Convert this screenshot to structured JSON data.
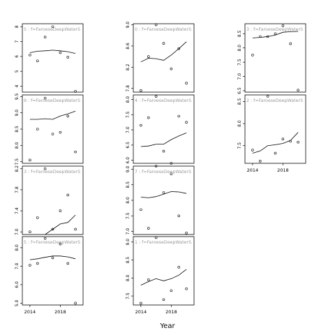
{
  "chart_data": {
    "type": "scatter",
    "xlabel": "Year",
    "x_ticks": [
      "2014",
      "2018"
    ],
    "xlim": [
      2013,
      2021
    ],
    "panels": [
      {
        "label": "5 : f=FaroeseDeepWaterS",
        "y_ticks": [
          "4",
          "5",
          "6",
          "7",
          "8"
        ],
        "ylim": [
          3.6,
          8.2
        ],
        "points": [
          [
            2014,
            6.1
          ],
          [
            2015,
            5.7
          ],
          [
            2016,
            7.3
          ],
          [
            2017,
            8.0
          ],
          [
            2018,
            6.25
          ],
          [
            2019,
            5.95
          ],
          [
            2020,
            3.65
          ]
        ],
        "trend": [
          [
            2014,
            6.25
          ],
          [
            2015,
            6.35
          ],
          [
            2016,
            6.38
          ],
          [
            2017,
            6.42
          ],
          [
            2018,
            6.38
          ],
          [
            2019,
            6.32
          ],
          [
            2020,
            6.2
          ]
        ]
      },
      {
        "label": "9 : f=FaroeseDeepWaterS",
        "y_ticks": [
          "7.5",
          "8.0",
          "8.5",
          "9.0",
          "9.5"
        ],
        "ylim": [
          7.45,
          9.55
        ],
        "points": [
          [
            2014,
            7.55
          ],
          [
            2015,
            8.5
          ],
          [
            2016,
            9.45
          ],
          [
            2017,
            8.35
          ],
          [
            2018,
            8.4
          ],
          [
            2019,
            8.9
          ],
          [
            2020,
            7.8
          ]
        ],
        "trend": [
          [
            2014,
            8.8
          ],
          [
            2015,
            8.8
          ],
          [
            2016,
            8.82
          ],
          [
            2017,
            8.8
          ],
          [
            2018,
            8.9
          ],
          [
            2019,
            8.97
          ],
          [
            2020,
            9.05
          ]
        ]
      },
      {
        "label": "3 : f=FaroeseDeepWaterS",
        "y_ticks": [
          "7.0",
          "7.4",
          "7.8",
          "8.2"
        ],
        "ylim": [
          6.95,
          8.25
        ],
        "points": [
          [
            2014,
            7.0
          ],
          [
            2015,
            7.27
          ],
          [
            2016,
            8.2
          ],
          [
            2017,
            7.05
          ],
          [
            2018,
            7.4
          ],
          [
            2019,
            7.7
          ],
          [
            2020,
            7.05
          ]
        ],
        "trend": [
          [
            2016,
            6.95
          ],
          [
            2017,
            7.05
          ],
          [
            2018,
            7.15
          ],
          [
            2019,
            7.18
          ],
          [
            2020,
            7.32
          ]
        ]
      },
      {
        "label": "5 : f=FaroeseDeepWaterS",
        "y_ticks": [
          "5.0",
          "6.0",
          "7.0",
          "8.0"
        ],
        "ylim": [
          4.9,
          8.6
        ],
        "points": [
          [
            2014,
            7.05
          ],
          [
            2015,
            7.15
          ],
          [
            2016,
            8.5
          ],
          [
            2017,
            7.45
          ],
          [
            2018,
            8.2
          ],
          [
            2019,
            7.15
          ],
          [
            2020,
            5.0
          ]
        ],
        "trend": [
          [
            2014,
            7.35
          ],
          [
            2015,
            7.4
          ],
          [
            2016,
            7.48
          ],
          [
            2017,
            7.55
          ],
          [
            2018,
            7.55
          ],
          [
            2019,
            7.5
          ],
          [
            2020,
            7.4
          ]
        ]
      },
      {
        "label": "0 : f=FaroeseDeepWaterS",
        "y_ticks": [
          "7.8",
          "8.2",
          "8.6",
          "9.0"
        ],
        "ylim": [
          7.73,
          9.02
        ],
        "points": [
          [
            2014,
            7.76
          ],
          [
            2015,
            8.4
          ],
          [
            2016,
            9.0
          ],
          [
            2017,
            8.65
          ],
          [
            2018,
            8.17
          ],
          [
            2019,
            8.55
          ],
          [
            2020,
            7.9
          ]
        ],
        "trend": [
          [
            2014,
            8.3
          ],
          [
            2015,
            8.37
          ],
          [
            2016,
            8.36
          ],
          [
            2017,
            8.33
          ],
          [
            2018,
            8.43
          ],
          [
            2019,
            8.55
          ],
          [
            2020,
            8.68
          ]
        ]
      },
      {
        "label": "4 : f=FaroeseDeepWaterS",
        "y_ticks": [
          "6.0",
          "6.5",
          "7.0",
          "7.5",
          "8.0"
        ],
        "ylim": [
          5.9,
          8.15
        ],
        "points": [
          [
            2014,
            7.15
          ],
          [
            2015,
            7.4
          ],
          [
            2016,
            8.1
          ],
          [
            2017,
            6.3
          ],
          [
            2018,
            5.9
          ],
          [
            2019,
            7.45
          ],
          [
            2020,
            7.25
          ]
        ],
        "trend": [
          [
            2014,
            6.45
          ],
          [
            2015,
            6.47
          ],
          [
            2016,
            6.53
          ],
          [
            2017,
            6.53
          ],
          [
            2018,
            6.68
          ],
          [
            2019,
            6.8
          ],
          [
            2020,
            6.9
          ]
        ]
      },
      {
        "label": "7 : f=FaroeseDeepWaterS",
        "y_ticks": [
          "7.0",
          "7.5",
          "8.0",
          "8.5",
          "9.0"
        ],
        "ylim": [
          6.9,
          9.1
        ],
        "points": [
          [
            2014,
            7.7
          ],
          [
            2015,
            7.1
          ],
          [
            2016,
            9.1
          ],
          [
            2017,
            8.25
          ],
          [
            2018,
            8.85
          ],
          [
            2019,
            7.5
          ],
          [
            2020,
            6.95
          ]
        ],
        "trend": [
          [
            2014,
            8.1
          ],
          [
            2015,
            8.08
          ],
          [
            2016,
            8.12
          ],
          [
            2017,
            8.2
          ],
          [
            2018,
            8.28
          ],
          [
            2019,
            8.27
          ],
          [
            2020,
            8.22
          ]
        ]
      },
      {
        "label": "1 : f=FaroeseDeepWaterS",
        "y_ticks": [
          "7.5",
          "8.0",
          "8.5",
          "9.0"
        ],
        "ylim": [
          7.25,
          9.15
        ],
        "points": [
          [
            2014,
            7.3
          ],
          [
            2015,
            7.95
          ],
          [
            2016,
            9.12
          ],
          [
            2017,
            7.4
          ],
          [
            2018,
            7.65
          ],
          [
            2019,
            8.3
          ],
          [
            2020,
            7.7
          ]
        ],
        "trend": [
          [
            2014,
            7.8
          ],
          [
            2015,
            7.9
          ],
          [
            2016,
            7.98
          ],
          [
            2017,
            7.92
          ],
          [
            2018,
            7.98
          ],
          [
            2019,
            8.08
          ],
          [
            2020,
            8.24
          ]
        ]
      },
      {
        "label": "3 : f=FaroeseDeepWaterS",
        "y_ticks": [
          "6.5",
          "7.0",
          "7.5",
          "8.0",
          "8.5"
        ],
        "ylim": [
          6.45,
          8.85
        ],
        "points": [
          [
            2014,
            7.75
          ],
          [
            2015,
            8.4
          ],
          [
            2016,
            8.4
          ],
          [
            2017,
            8.5
          ],
          [
            2018,
            8.78
          ],
          [
            2019,
            8.15
          ],
          [
            2020,
            6.52
          ]
        ],
        "trend": [
          [
            2014,
            8.35
          ],
          [
            2015,
            8.37
          ],
          [
            2016,
            8.4
          ],
          [
            2017,
            8.45
          ],
          [
            2018,
            8.55
          ],
          [
            2019,
            8.57
          ],
          [
            2020,
            8.58
          ]
        ]
      },
      {
        "label": "2 : f=FaroeseDeepWaterS",
        "y_ticks": [
          "7.5",
          "8.0",
          "8.5"
        ],
        "ylim": [
          7.1,
          8.65
        ],
        "points": [
          [
            2014,
            7.4
          ],
          [
            2015,
            7.15
          ],
          [
            2016,
            8.62
          ],
          [
            2017,
            7.33
          ],
          [
            2018,
            7.65
          ],
          [
            2019,
            7.6
          ],
          [
            2020,
            7.58
          ]
        ],
        "trend": [
          [
            2014,
            7.33
          ],
          [
            2015,
            7.38
          ],
          [
            2016,
            7.5
          ],
          [
            2017,
            7.52
          ],
          [
            2018,
            7.55
          ],
          [
            2019,
            7.62
          ],
          [
            2020,
            7.8
          ]
        ]
      }
    ]
  }
}
